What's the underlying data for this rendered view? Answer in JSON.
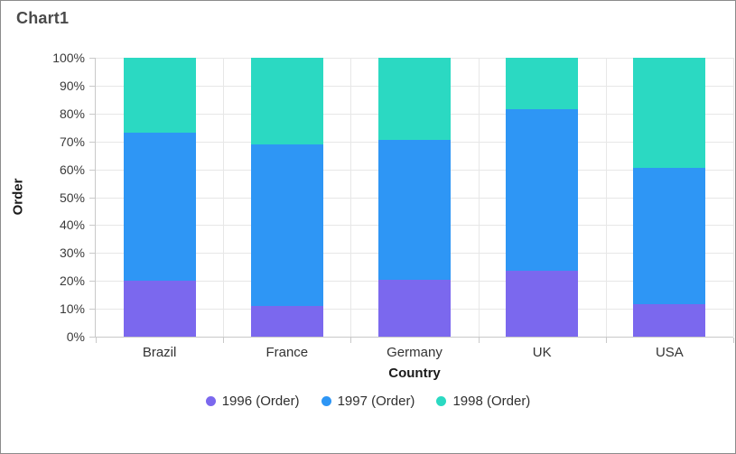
{
  "window": {
    "background": "#ffffff",
    "border_color": "#8c8c8c"
  },
  "chart_data": {
    "type": "bar",
    "variant": "stacked-100-percent-column",
    "title": "Chart1",
    "xlabel": "Country",
    "ylabel": "Order",
    "categories": [
      "Brazil",
      "France",
      "Germany",
      "UK",
      "USA"
    ],
    "series": [
      {
        "name": "1996 (Order)",
        "color": "#7B68EE",
        "values": [
          20.0,
          11.0,
          20.5,
          23.5,
          11.5
        ]
      },
      {
        "name": "1997 (Order)",
        "color": "#2E96F5",
        "values": [
          53.0,
          58.0,
          50.0,
          58.0,
          49.0
        ]
      },
      {
        "name": "1998 (Order)",
        "color": "#2BD9C2",
        "values": [
          27.0,
          31.0,
          29.5,
          18.5,
          39.5
        ]
      }
    ],
    "value_format": "percent",
    "ylim": [
      0,
      100
    ],
    "y_ticks": [
      "0%",
      "10%",
      "20%",
      "30%",
      "40%",
      "50%",
      "60%",
      "70%",
      "80%",
      "90%",
      "100%"
    ],
    "grid": true,
    "legend_position": "bottom"
  }
}
